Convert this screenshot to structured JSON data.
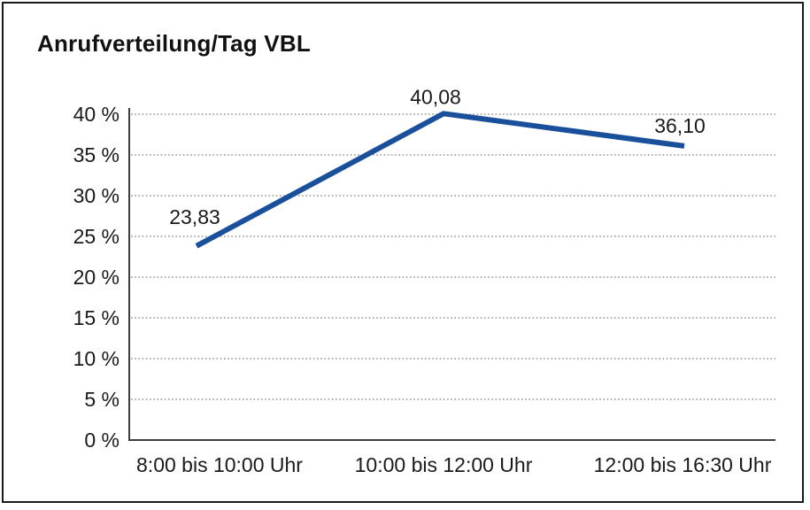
{
  "chart_data": {
    "type": "line",
    "title": "Anrufverteilung/Tag VBL",
    "categories": [
      "8:00 bis 10:00 Uhr",
      "10:00 bis 12:00 Uhr",
      "12:00 bis 16:30 Uhr"
    ],
    "series": [
      {
        "name": "Anrufverteilung/Tag VBL",
        "values": [
          23.83,
          40.08,
          36.1
        ]
      }
    ],
    "value_labels": [
      "23,83",
      "40,08",
      "36,10"
    ],
    "xlabel": "",
    "ylabel": "",
    "ylim": [
      0,
      40
    ],
    "ytick_step": 5,
    "ytick_labels": [
      "0 %",
      "5 %",
      "10 %",
      "15 %",
      "20 %",
      "25 %",
      "30 %",
      "35 %",
      "40 %"
    ],
    "grid": "horizontal-dotted",
    "legend": "none",
    "colors": {
      "line": "#1a4f9b",
      "text": "#1a1a1a",
      "axis": "#3d3d3d",
      "grid": "#7d7d7d",
      "border": "#1a1a1a",
      "background": "#ffffff"
    }
  }
}
